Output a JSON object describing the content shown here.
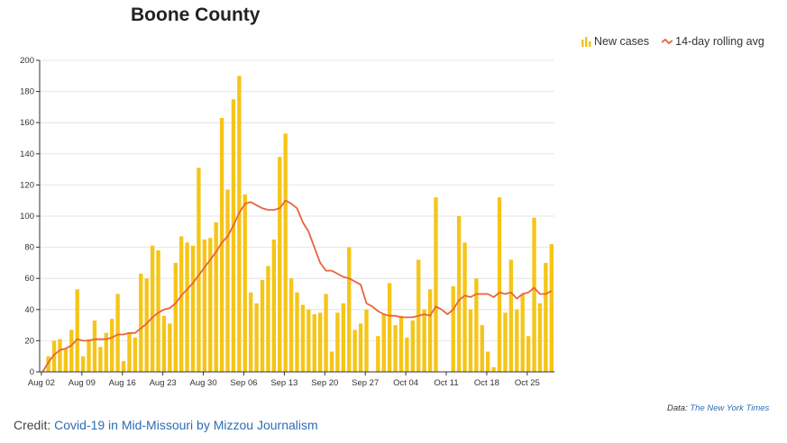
{
  "chart_data": {
    "type": "bar",
    "title": "Boone County",
    "xlabel": "",
    "ylabel": "",
    "ylim": [
      0,
      200
    ],
    "y_ticks": [
      0,
      20,
      40,
      60,
      80,
      100,
      120,
      140,
      160,
      180,
      200
    ],
    "x_tick_labels": [
      "Aug 02",
      "Aug 09",
      "Aug 16",
      "Aug 23",
      "Aug 30",
      "Sep 06",
      "Sep 13",
      "Sep 20",
      "Sep 27",
      "Oct 04",
      "Oct 11",
      "Oct 18",
      "Oct 25"
    ],
    "grid": "horizontal",
    "legend_position": "top-right",
    "start_date": "2020-08-02",
    "series": [
      {
        "name": "New cases",
        "type": "bar",
        "color": "#f5c518",
        "values": [
          0,
          10,
          20,
          21,
          15,
          27,
          53,
          10,
          21,
          33,
          16,
          25,
          34,
          50,
          7,
          25,
          22,
          63,
          60,
          81,
          78,
          36,
          31,
          70,
          87,
          83,
          81,
          131,
          85,
          86,
          96,
          163,
          117,
          175,
          190,
          114,
          51,
          44,
          59,
          68,
          85,
          138,
          153,
          60,
          51,
          43,
          40,
          37,
          38,
          50,
          13,
          38,
          44,
          80,
          27,
          31,
          40,
          0,
          23,
          37,
          57,
          30,
          36,
          22,
          33,
          72,
          40,
          53,
          112,
          0,
          0,
          55,
          100,
          83,
          40,
          60,
          30,
          13,
          3,
          112,
          38,
          72,
          40,
          50,
          23,
          99,
          44,
          70,
          82
        ]
      },
      {
        "name": "14-day rolling avg",
        "type": "line",
        "color": "#e8643c",
        "values": [
          0,
          6,
          11,
          14,
          15,
          17,
          21,
          20,
          20,
          21,
          21,
          21,
          22,
          24,
          24,
          25,
          25,
          28,
          31,
          35,
          38,
          40,
          41,
          44,
          49,
          53,
          57,
          62,
          67,
          72,
          77,
          83,
          87,
          94,
          102,
          108,
          109,
          107,
          105,
          104,
          104,
          105,
          110,
          108,
          105,
          96,
          90,
          80,
          70,
          65,
          65,
          63,
          61,
          60,
          58,
          56,
          44,
          42,
          39,
          37,
          36,
          36,
          35,
          35,
          35,
          36,
          37,
          36,
          42,
          40,
          37,
          40,
          46,
          49,
          48,
          50,
          50,
          50,
          48,
          51,
          50,
          51,
          47,
          50,
          51,
          54,
          50,
          50,
          52
        ]
      }
    ]
  },
  "legend": {
    "new_cases_label": "New cases",
    "rolling_avg_label": "14-day rolling avg"
  },
  "source": {
    "prefix": "Data:",
    "link_text": "The New York Times"
  },
  "credit": {
    "prefix": "Credit:",
    "link_text": "Covid-19 in Mid-Missouri by Mizzou Journalism"
  },
  "colors": {
    "bar": "#f5c518",
    "line": "#e8643c",
    "link": "#2d6db5"
  }
}
